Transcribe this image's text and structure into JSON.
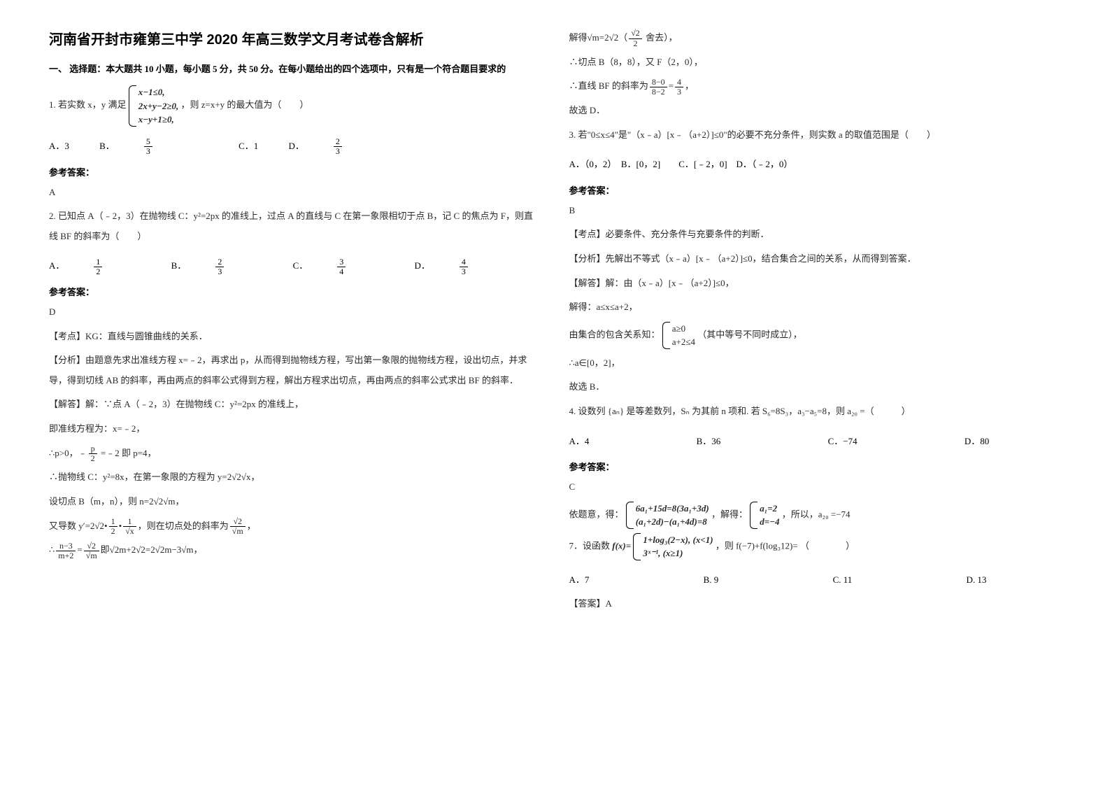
{
  "title": "河南省开封市雍第三中学 2020 年高三数学文月考试卷含解析",
  "section1_header": "一、 选择题：本大题共 10 小题，每小题 5 分，共 50 分。在每小题给出的四个选项中，只有是一个符合题目要求的",
  "q1": {
    "prefix": "1. 若实数 x，y 满足",
    "sys_line1": "x−1≤0,",
    "sys_line2": "2x+y−2≥0,",
    "sys_line3": "x−y+1≥0,",
    "suffix": "，则 z=x+y 的最大值为（　　）",
    "optA": "A．3",
    "optB": "B．",
    "optB_num": "5",
    "optB_den": "3",
    "optC": "C．1",
    "optD": "D．",
    "optD_num": "2",
    "optD_den": "3",
    "answer_label": "参考答案：",
    "answer": "A"
  },
  "q2": {
    "text": "2. 已知点 A（﹣2，3）在抛物线 C：y²=2px 的准线上，过点 A 的直线与 C 在第一象限相切于点 B，记 C 的焦点为 F，则直线 BF 的斜率为（　　）",
    "optA": "A．",
    "optA_num": "1",
    "optA_den": "2",
    "optB": "B．",
    "optB_num": "2",
    "optB_den": "3",
    "optC": "C．",
    "optC_num": "3",
    "optC_den": "4",
    "optD": "D．",
    "optD_num": "4",
    "optD_den": "3",
    "answer_label": "参考答案：",
    "answer": "D",
    "exp1": "【考点】KG：直线与圆锥曲线的关系．",
    "exp2": "【分析】由题意先求出准线方程 x=﹣2，再求出 p，从而得到抛物线方程，写出第一象限的抛物线方程，设出切点，并求导，得到切线 AB 的斜率，再由两点的斜率公式得到方程，解出方程求出切点，再由两点的斜率公式求出 BF 的斜率．",
    "exp3": "【解答】解：∵点 A（﹣2，3）在抛物线 C：y²=2px 的准线上，",
    "exp4": "即准线方程为：x=﹣2，",
    "exp5_prefix": "∴p>0，﹣",
    "exp5_num": "p",
    "exp5_den": "2",
    "exp5_suffix": " =﹣2 即 p=4，",
    "exp6": "∴抛物线 C：y²=8x，在第一象限的方程为 y=2√2√x，",
    "exp7": "设切点 B（m，n），则 n=2√2√m，",
    "exp8_prefix": "又导数 y′=2√2•",
    "exp8_num": "1",
    "exp8_den": "2",
    "exp8_mid": "•",
    "exp8_num2": "1",
    "exp8_den2": "√x",
    "exp8_suffix": "，则在切点处的斜率为",
    "exp8_num3": "√2",
    "exp8_den3": "√m",
    "exp8_end": "，",
    "exp9_prefix": "∴",
    "exp9_num": "n−3",
    "exp9_den": "m+2",
    "exp9_mid": "=",
    "exp9_num2": "√2",
    "exp9_den2": "√m",
    "exp9_suffix": "即√2m+2√2=2√2m−3√m，"
  },
  "col2": {
    "line1_prefix": "解得√m=2√2（",
    "line1_num": "√2",
    "line1_den": "2",
    "line1_suffix": " 舍去），",
    "line2": "∴切点 B（8，8），又 F（2，0），",
    "line3_prefix": "∴直线 BF 的斜率为",
    "line3_num": "8−0",
    "line3_den": "8−2",
    "line3_mid": "=",
    "line3_num2": "4",
    "line3_den2": "3",
    "line3_suffix": "，",
    "line4": "故选 D．"
  },
  "q3": {
    "text": "3. 若\"0≤x≤4\"是\"（x﹣a）[x﹣（a+2）]≤0\"的必要不充分条件，则实数 a 的取值范围是（　　）",
    "options": "A．（0，2）　B．[0，2]　　C．[﹣2，0]　D．（﹣2，0）",
    "answer_label": "参考答案：",
    "answer": "B",
    "exp1": "【考点】必要条件、充分条件与充要条件的判断．",
    "exp2": "【分析】先解出不等式（x﹣a）[x﹣（a+2）]≤0，结合集合之间的关系，从而得到答案．",
    "exp3": "【解答】解：由（x﹣a）[x﹣（a+2）]≤0，",
    "exp4": "解得：a≤x≤a+2，",
    "exp5_prefix": "由集合的包含关系知：",
    "exp5_line1": "a≥0",
    "exp5_line2": "a+2≤4",
    "exp5_suffix": "（其中等号不同时成立），",
    "exp6": "∴a∈[0，2]，",
    "exp7": "故选 B．"
  },
  "q4": {
    "prefix": "4. 设数列 {aₙ} 是等差数列，Sₙ 为其前 n 项和. 若 S₆=8S₃，a₃−a₅=8，则 a₂₀ =（　　　）",
    "optA": "A．4",
    "optB": "B．36",
    "optC": "C．−74",
    "optD": "D．80",
    "answer_label": "参考答案：",
    "answer": "C",
    "exp_prefix": "依题意，得：",
    "exp_line1": "6a₁+15d=8(3a₁+3d)",
    "exp_line2": "(a₁+2d)−(a₁+4d)=8",
    "exp_mid": "，解得：",
    "exp_line3": "a₁=2",
    "exp_line4": "d=−4",
    "exp_suffix": "，所以，a₂₀ =−74"
  },
  "q7": {
    "prefix": "7．设函数",
    "func": "f(x)=",
    "func_line1": "1+log₃(2−x), (x<1)",
    "func_line2": "3ˣ⁻¹, (x≥1)",
    "suffix": "，则 f(−7)+f(log₃12)= （　　　　）",
    "optA": "A．7",
    "optB": "B. 9",
    "optC": "C. 11",
    "optD": "D. 13",
    "answer_label": "【答案】A"
  }
}
